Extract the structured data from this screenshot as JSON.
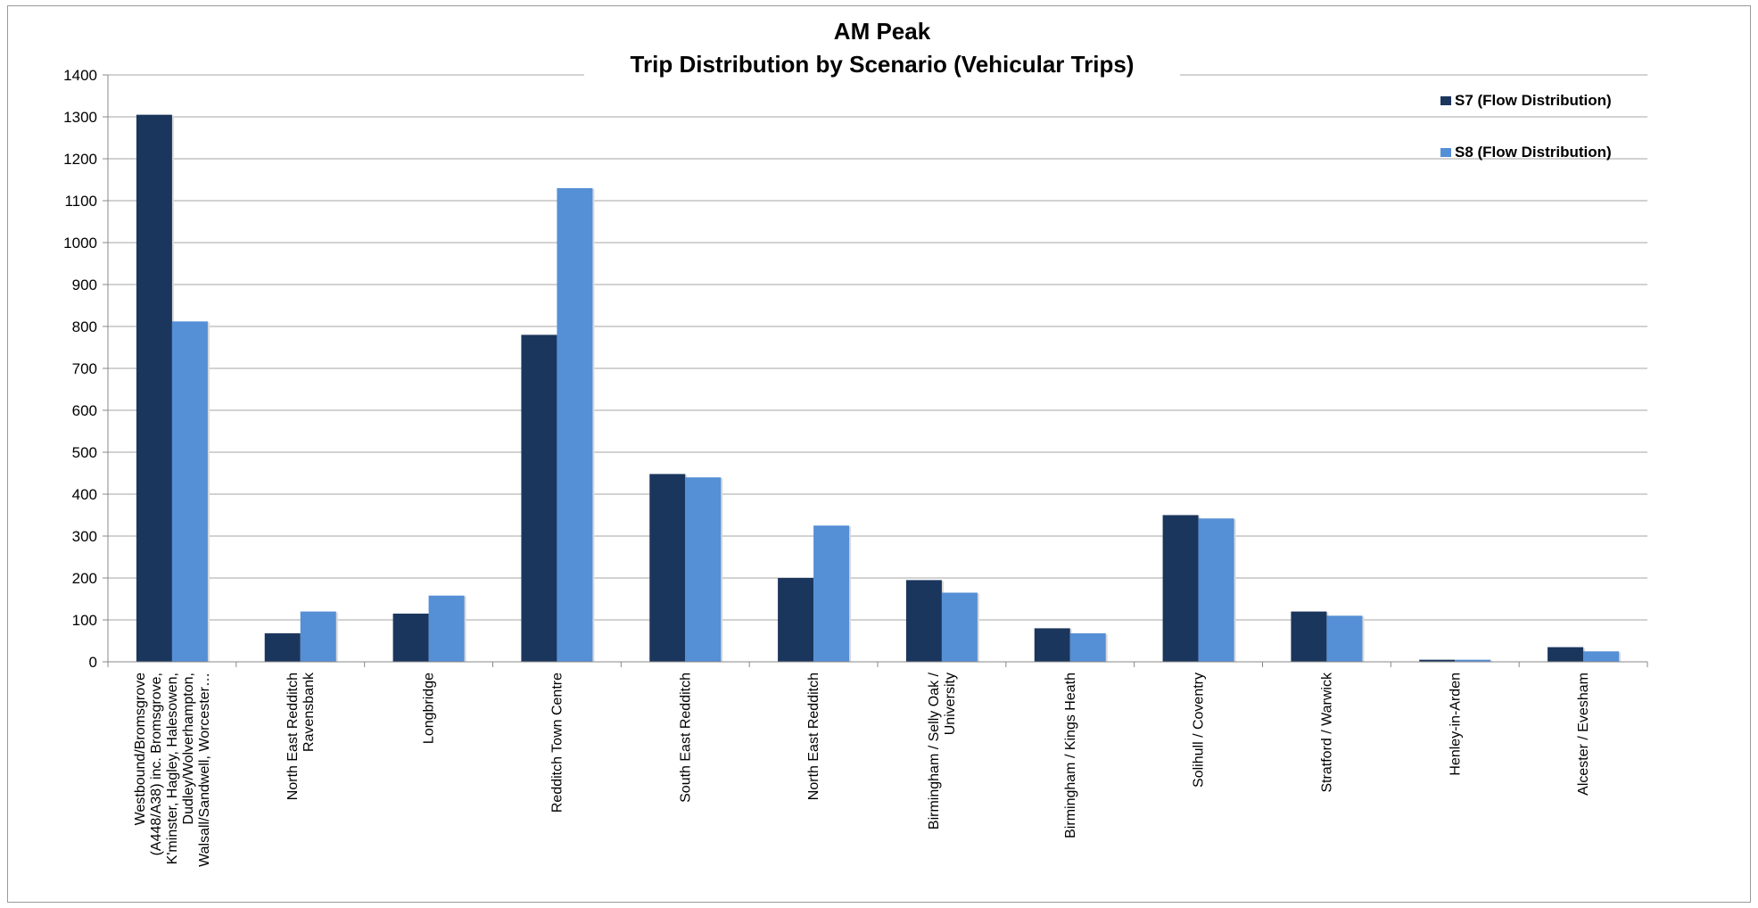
{
  "chart_data": {
    "type": "bar",
    "title": "AM Peak",
    "subtitle": "Trip Distribution by Scenario (Vehicular Trips)",
    "xlabel": "",
    "ylabel": "",
    "ylim": [
      0,
      1400
    ],
    "yticks": [
      0,
      100,
      200,
      300,
      400,
      500,
      600,
      700,
      800,
      900,
      1000,
      1100,
      1200,
      1300,
      1400
    ],
    "grid": true,
    "legend_position": "top-right",
    "categories": [
      [
        "Westbound/Bromsgrove",
        "(A448/A38) inc. Bromsgrove,",
        "K'minster, Hagley, Halesowen,",
        "Dudley/Wolverhampton,",
        "Walsall/Sandwell, Worcester…"
      ],
      [
        "North East Redditch",
        "Ravensbank"
      ],
      [
        "Longbridge"
      ],
      [
        "Redditch Town Centre"
      ],
      [
        "South East Redditch"
      ],
      [
        "North East Redditch"
      ],
      [
        "Birmingham / Selly Oak /",
        "University"
      ],
      [
        "Birmingham / Kings Heath"
      ],
      [
        "Solihull / Coventry"
      ],
      [
        "Stratford / Warwick"
      ],
      [
        "Henley-in-Arden"
      ],
      [
        "Alcester / Evesham"
      ]
    ],
    "series": [
      {
        "name": "S7 (Flow Distribution)",
        "color": "#1b365d",
        "values": [
          1305,
          68,
          115,
          780,
          448,
          200,
          195,
          80,
          350,
          120,
          5,
          35
        ]
      },
      {
        "name": "S8 (Flow Distribution)",
        "color": "#558fd5",
        "values": [
          812,
          120,
          158,
          1130,
          440,
          325,
          165,
          68,
          342,
          110,
          5,
          25
        ]
      }
    ]
  }
}
